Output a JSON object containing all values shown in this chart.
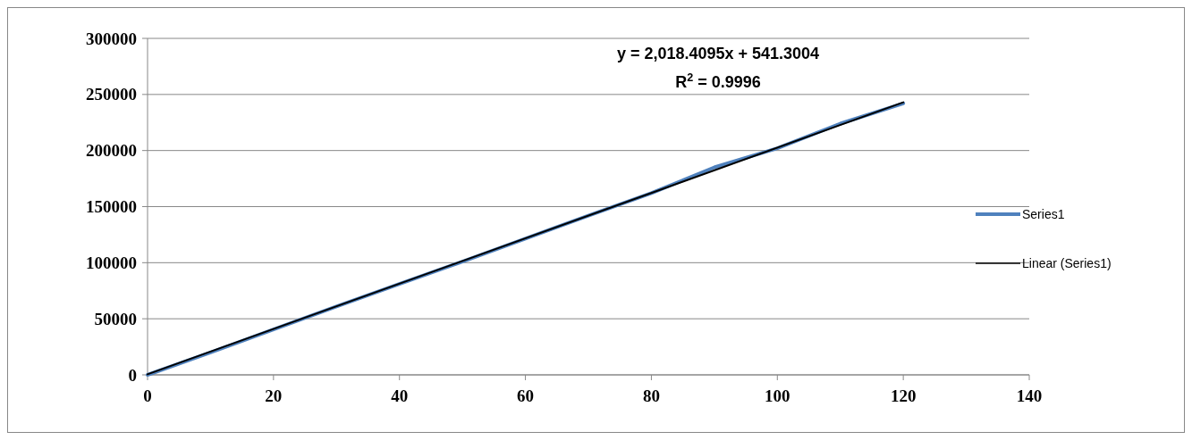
{
  "chart_data": {
    "type": "line",
    "xlim": [
      0,
      140
    ],
    "xticks": [
      0,
      20,
      40,
      60,
      80,
      100,
      120,
      140
    ],
    "ylim": [
      0,
      300000
    ],
    "yticks": [
      0,
      50000,
      100000,
      150000,
      200000,
      250000,
      300000
    ],
    "grid": "y",
    "legend": "right",
    "marker": "none",
    "annotations": [
      "y = 2,018.4095x + 541.3004",
      "R$^{2}$ = 0.9996"
    ],
    "series": [
      {
        "name": "Series1",
        "color": "#4f81bd",
        "x": [
          0,
          10,
          20,
          30,
          40,
          50,
          60,
          70,
          80,
          90,
          100,
          110,
          120
        ],
        "values": [
          0,
          20000,
          40500,
          61000,
          81000,
          101000,
          121500,
          142000,
          162000,
          185000,
          202000,
          224000,
          242000
        ]
      },
      {
        "name": "Linear (Series1)",
        "color": "#000000",
        "type": "line",
        "x": [
          0,
          120
        ],
        "values": [
          500,
          243000
        ]
      }
    ]
  }
}
